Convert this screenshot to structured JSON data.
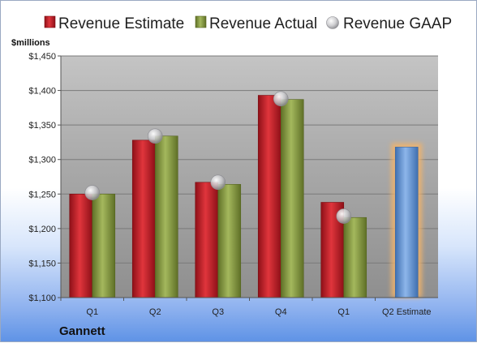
{
  "company": "Gannett",
  "colors": {
    "estimate": "#c0202a",
    "actual": "#8da04a",
    "gaap": "#b8b8bc",
    "projection": "#6d9bd6",
    "highlight": "#f2b36b"
  },
  "chart_data": {
    "type": "bar",
    "unit_label": "$millions",
    "categories": [
      "Q1",
      "Q2",
      "Q3",
      "Q4",
      "Q1",
      "Q2 Estimate"
    ],
    "series": [
      {
        "name": "Revenue Estimate",
        "values": [
          1250,
          1328,
          1267,
          1393,
          1238,
          1318
        ]
      },
      {
        "name": "Revenue Actual",
        "values": [
          1250,
          1334,
          1264,
          1387,
          1216,
          null
        ]
      },
      {
        "name": "Revenue GAAP",
        "values": [
          1252,
          1334,
          1267,
          1388,
          1218,
          null
        ]
      }
    ],
    "yticks": [
      "$1,100",
      "$1,150",
      "$1,200",
      "$1,250",
      "$1,300",
      "$1,350",
      "$1,400",
      "$1,450"
    ],
    "ylim": [
      1100,
      1450
    ],
    "grid": true,
    "legend": "top"
  }
}
